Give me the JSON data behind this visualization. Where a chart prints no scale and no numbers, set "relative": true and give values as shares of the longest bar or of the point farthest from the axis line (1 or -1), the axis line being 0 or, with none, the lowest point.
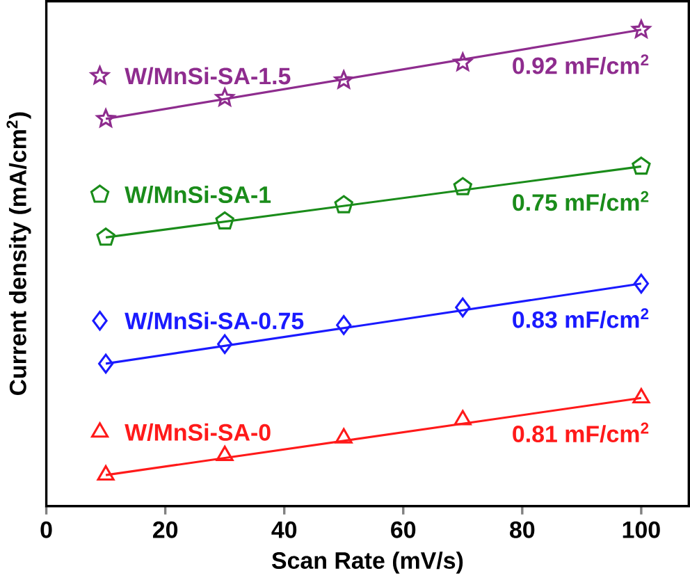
{
  "chart_data": {
    "type": "scatter",
    "relative": true,
    "xlabel": "Scan Rate (mV/s)",
    "ylabel": "Current density (mA/cm$^{2}$)",
    "xlim": [
      0,
      108
    ],
    "xticks": [
      0,
      20,
      40,
      60,
      80,
      100
    ],
    "tick_labels": "x",
    "legend": "top left",
    "series": [
      {
        "name": "W/MnSi-SA-1.5",
        "marker": "star",
        "color": "#8e2c8e",
        "x": [
          10,
          30,
          50,
          70,
          100
        ],
        "values": [
          0.813,
          0.857,
          0.894,
          0.931,
          1
        ]
      },
      {
        "type": "line",
        "color": "#8e2c8e",
        "x": [
          10,
          100
        ],
        "values": [
          0.813,
          1
        ]
      },
      {
        "name": "W/MnSi-SA-1",
        "color": "#1a8c1a",
        "x": [
          10,
          30,
          50,
          70,
          100
        ],
        "values": [
          0.564,
          0.598,
          0.632,
          0.67,
          0.713
        ]
      },
      {
        "type": "line",
        "color": "#1a8c1a",
        "x": [
          10,
          100
        ],
        "values": [
          0.564,
          0.713
        ]
      },
      {
        "name": "W/MnSi-SA-0.75",
        "marker": "diamond",
        "color": "#1a1aff",
        "x": [
          10,
          30,
          50,
          70,
          100
        ],
        "values": [
          0.299,
          0.34,
          0.38,
          0.417,
          0.467
        ]
      },
      {
        "type": "line",
        "color": "#1a1aff",
        "x": [
          10,
          100
        ],
        "values": [
          0.299,
          0.467
        ]
      },
      {
        "name": "W/MnSi-SA-0",
        "marker": "triangle",
        "color": "#ff1a1a",
        "x": [
          10,
          30,
          50,
          70,
          100
        ],
        "values": [
          0.065,
          0.106,
          0.143,
          0.181,
          0.227
        ]
      },
      {
        "type": "line",
        "color": "#ff1a1a",
        "x": [
          10,
          100
        ],
        "values": [
          0.065,
          0.227
        ]
      }
    ],
    "annotations": [
      "0.92 mF/cm$^{2}$",
      "0.75 mF/cm$^{2}$",
      "0.83 mF/cm$^{2}$",
      "0.81 mF/cm$^{2}$"
    ]
  }
}
